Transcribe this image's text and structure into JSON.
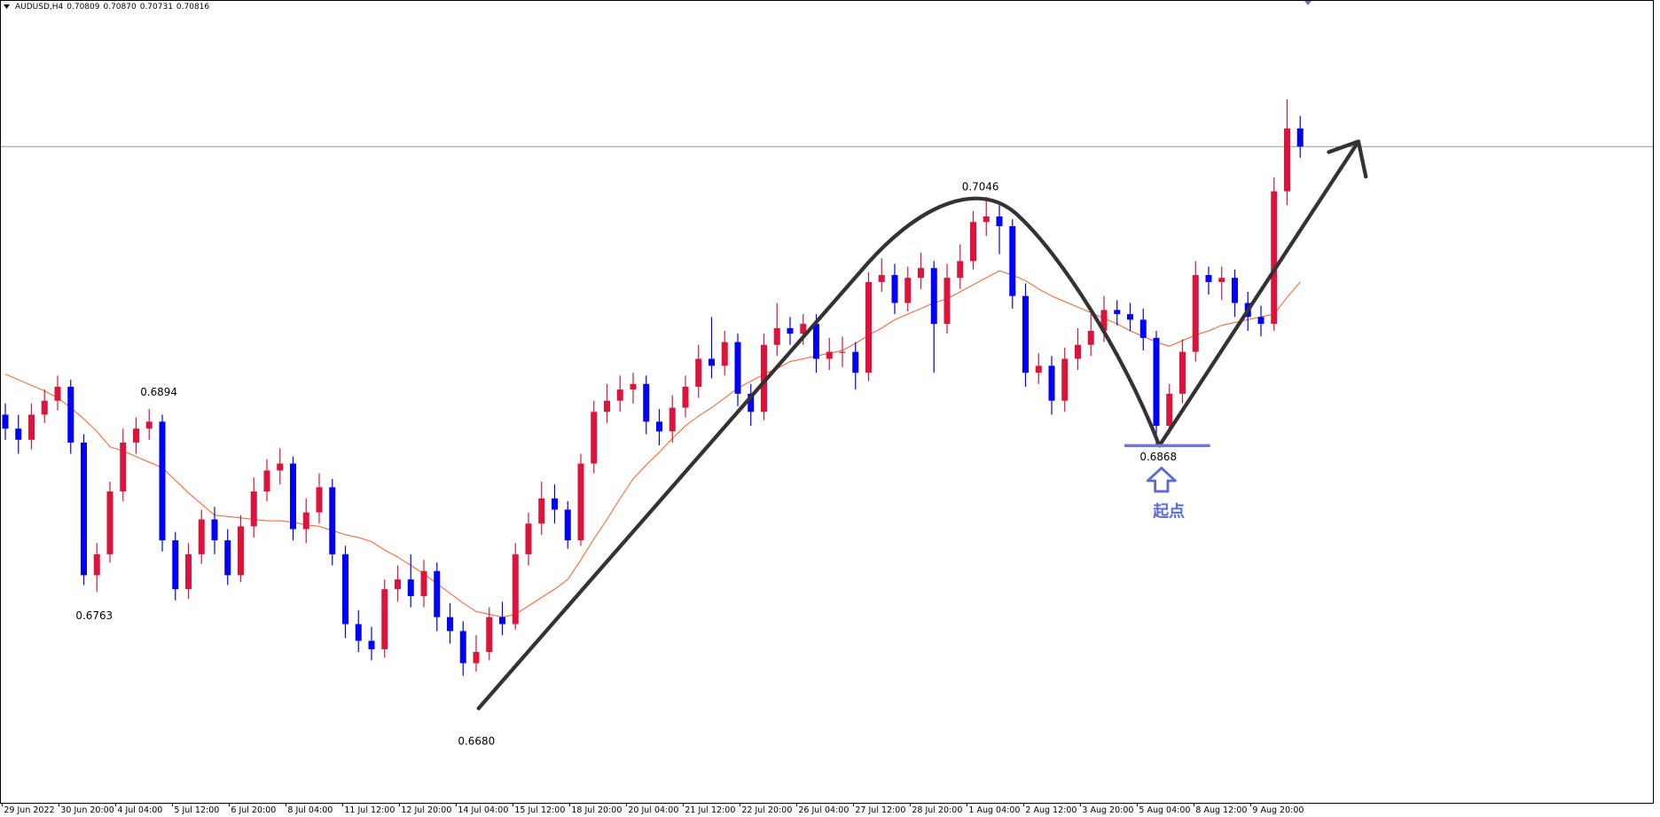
{
  "chart_data": {
    "type": "candlestick",
    "symbol": "AUDUSD,H4",
    "header_ohlc": [
      0.70809,
      0.7087,
      0.70731,
      0.70816
    ],
    "header_ohlc_labels": [
      "0.70809",
      "0.70870",
      "0.70731",
      "0.70816"
    ],
    "x_labels": [
      "29 Jun 2022",
      "30 Jun 20:00",
      "4 Jul 04:00",
      "5 Jul 12:00",
      "6 Jul 20:00",
      "8 Jul 04:00",
      "11 Jul 12:00",
      "12 Jul 20:00",
      "14 Jul 04:00",
      "15 Jul 12:00",
      "18 Jul 20:00",
      "20 Jul 04:00",
      "21 Jul 12:00",
      "22 Jul 20:00",
      "26 Jul 04:00",
      "27 Jul 12:00",
      "28 Jul 20:00",
      "1 Aug 04:00",
      "2 Aug 12:00",
      "3 Aug 20:00",
      "5 Aug 04:00",
      "8 Aug 12:00",
      "9 Aug 20:00"
    ],
    "ylim": [
      0.6612,
      0.7187
    ],
    "colors": {
      "up": "#dc143c",
      "down": "#0000ff"
    },
    "open": [
      0.689,
      0.688,
      0.6872,
      0.689,
      0.69,
      0.691,
      0.687,
      0.6775,
      0.679,
      0.6835,
      0.687,
      0.688,
      0.6885,
      0.68,
      0.6765,
      0.679,
      0.6815,
      0.68,
      0.6775,
      0.681,
      0.6835,
      0.685,
      0.6855,
      0.6808,
      0.682,
      0.6838,
      0.679,
      0.674,
      0.6728,
      0.6722,
      0.6765,
      0.6772,
      0.676,
      0.6778,
      0.6745,
      0.6735,
      0.6712,
      0.672,
      0.6745,
      0.674,
      0.679,
      0.6812,
      0.683,
      0.6822,
      0.68,
      0.6855,
      0.6892,
      0.69,
      0.6908,
      0.6912,
      0.6885,
      0.6878,
      0.6895,
      0.691,
      0.693,
      0.6925,
      0.6942,
      0.6905,
      0.6892,
      0.694,
      0.6952,
      0.6948,
      0.6955,
      0.693,
      0.6935,
      0.6935,
      0.692,
      0.6985,
      0.699,
      0.697,
      0.6988,
      0.6995,
      0.6955,
      0.6988,
      0.7,
      0.7028,
      0.7032,
      0.7025,
      0.6975,
      0.692,
      0.6925,
      0.69,
      0.693,
      0.694,
      0.695,
      0.6965,
      0.6962,
      0.6958,
      0.6945,
      0.6882,
      0.6905,
      0.6935,
      0.699,
      0.6985,
      0.6988,
      0.697,
      0.696,
      0.6955,
      0.705,
      0.7095
    ],
    "high": [
      0.6898,
      0.689,
      0.6898,
      0.6908,
      0.6918,
      0.6915,
      0.6876,
      0.6798,
      0.6842,
      0.688,
      0.6888,
      0.6894,
      0.689,
      0.6806,
      0.6798,
      0.6822,
      0.6824,
      0.6808,
      0.6818,
      0.6845,
      0.6858,
      0.6866,
      0.686,
      0.683,
      0.6848,
      0.6844,
      0.6796,
      0.675,
      0.6738,
      0.6772,
      0.6782,
      0.679,
      0.6786,
      0.6784,
      0.6755,
      0.6742,
      0.6732,
      0.6752,
      0.6756,
      0.6798,
      0.682,
      0.6842,
      0.684,
      0.6828,
      0.6862,
      0.69,
      0.6912,
      0.6918,
      0.692,
      0.6918,
      0.6894,
      0.6904,
      0.6918,
      0.694,
      0.696,
      0.695,
      0.6948,
      0.6912,
      0.6948,
      0.697,
      0.696,
      0.6962,
      0.6962,
      0.6945,
      0.6946,
      0.6942,
      0.6992,
      0.7002,
      0.6998,
      0.6996,
      0.7006,
      0.7,
      0.6998,
      0.7012,
      0.7036,
      0.7046,
      0.704,
      0.703,
      0.6984,
      0.6934,
      0.6932,
      0.6938,
      0.6952,
      0.6962,
      0.6975,
      0.6972,
      0.697,
      0.6966,
      0.695,
      0.6912,
      0.6944,
      0.7,
      0.6996,
      0.6996,
      0.6994,
      0.6978,
      0.6968,
      0.706,
      0.7116,
      0.7104
    ],
    "low": [
      0.6872,
      0.6862,
      0.6865,
      0.6884,
      0.6893,
      0.6862,
      0.6768,
      0.6763,
      0.6784,
      0.6828,
      0.6862,
      0.6872,
      0.6792,
      0.6757,
      0.6758,
      0.6783,
      0.679,
      0.6768,
      0.677,
      0.6802,
      0.6828,
      0.684,
      0.68,
      0.6798,
      0.6812,
      0.6782,
      0.673,
      0.672,
      0.6714,
      0.6716,
      0.6756,
      0.6752,
      0.6752,
      0.6735,
      0.6726,
      0.6703,
      0.6706,
      0.6714,
      0.6732,
      0.6736,
      0.6782,
      0.6804,
      0.6812,
      0.6794,
      0.6796,
      0.6848,
      0.6884,
      0.6892,
      0.6898,
      0.6876,
      0.6868,
      0.687,
      0.6888,
      0.6902,
      0.6916,
      0.6918,
      0.6896,
      0.6882,
      0.6886,
      0.6932,
      0.694,
      0.694,
      0.692,
      0.6922,
      0.6924,
      0.6908,
      0.6914,
      0.6978,
      0.6962,
      0.6964,
      0.698,
      0.692,
      0.6948,
      0.698,
      0.6994,
      0.7018,
      0.7005,
      0.6966,
      0.691,
      0.6912,
      0.689,
      0.6892,
      0.6922,
      0.6932,
      0.6942,
      0.6954,
      0.695,
      0.6936,
      0.6868,
      0.6876,
      0.6898,
      0.6928,
      0.6976,
      0.6972,
      0.696,
      0.695,
      0.6946,
      0.695,
      0.704,
      0.7074
    ],
    "close": [
      0.688,
      0.6872,
      0.689,
      0.69,
      0.691,
      0.687,
      0.6775,
      0.679,
      0.6835,
      0.687,
      0.688,
      0.6885,
      0.68,
      0.6765,
      0.679,
      0.6815,
      0.68,
      0.6775,
      0.681,
      0.6835,
      0.685,
      0.6855,
      0.6808,
      0.682,
      0.6838,
      0.679,
      0.674,
      0.6728,
      0.6722,
      0.6765,
      0.6772,
      0.676,
      0.6778,
      0.6745,
      0.6735,
      0.6712,
      0.672,
      0.6745,
      0.674,
      0.679,
      0.6812,
      0.683,
      0.6822,
      0.68,
      0.6855,
      0.6892,
      0.69,
      0.6908,
      0.6912,
      0.6885,
      0.6878,
      0.6895,
      0.691,
      0.693,
      0.6925,
      0.6942,
      0.6905,
      0.6892,
      0.694,
      0.6952,
      0.6948,
      0.6955,
      0.693,
      0.6935,
      0.6935,
      0.692,
      0.6985,
      0.699,
      0.697,
      0.6988,
      0.6995,
      0.6955,
      0.6988,
      0.7,
      0.7028,
      0.7032,
      0.7025,
      0.6975,
      0.692,
      0.6925,
      0.69,
      0.693,
      0.694,
      0.695,
      0.6965,
      0.6962,
      0.6958,
      0.6945,
      0.6882,
      0.6905,
      0.6935,
      0.699,
      0.6985,
      0.6988,
      0.697,
      0.696,
      0.6955,
      0.705,
      0.7095,
      0.7082
    ],
    "ma": {
      "color": "#ff5a1f",
      "values": [
        0.6919,
        0.6915,
        0.6911,
        0.6907,
        0.6902,
        0.6895,
        0.6887,
        0.6878,
        0.6867,
        0.6864,
        0.686,
        0.6856,
        0.6852,
        0.6843,
        0.6834,
        0.6826,
        0.6818,
        0.6817,
        0.6816,
        0.6815,
        0.6814,
        0.6814,
        0.6813,
        0.6811,
        0.681,
        0.6807,
        0.6804,
        0.6802,
        0.6799,
        0.6793,
        0.6788,
        0.6782,
        0.6776,
        0.6769,
        0.6762,
        0.6755,
        0.6749,
        0.6747,
        0.6745,
        0.6747,
        0.6753,
        0.6759,
        0.6765,
        0.6772,
        0.6786,
        0.6801,
        0.6815,
        0.683,
        0.6844,
        0.6854,
        0.6863,
        0.6873,
        0.6882,
        0.6889,
        0.6895,
        0.6902,
        0.6909,
        0.6914,
        0.6919,
        0.6923,
        0.6928,
        0.693,
        0.6932,
        0.6934,
        0.6936,
        0.6941,
        0.6947,
        0.6952,
        0.6958,
        0.6962,
        0.6966,
        0.697,
        0.6973,
        0.6978,
        0.6983,
        0.6988,
        0.6993,
        0.699,
        0.6986,
        0.698,
        0.6975,
        0.6971,
        0.6967,
        0.6963,
        0.6959,
        0.6955,
        0.695,
        0.6946,
        0.6942,
        0.6939,
        0.6943,
        0.6947,
        0.695,
        0.6954,
        0.6956,
        0.6958,
        0.696,
        0.6962,
        0.6974,
        0.6985
      ]
    },
    "annotations": [
      "0.6894",
      "0.6763",
      "0.6680",
      "0.7046",
      "0.6868"
    ],
    "start_label": "起点"
  }
}
